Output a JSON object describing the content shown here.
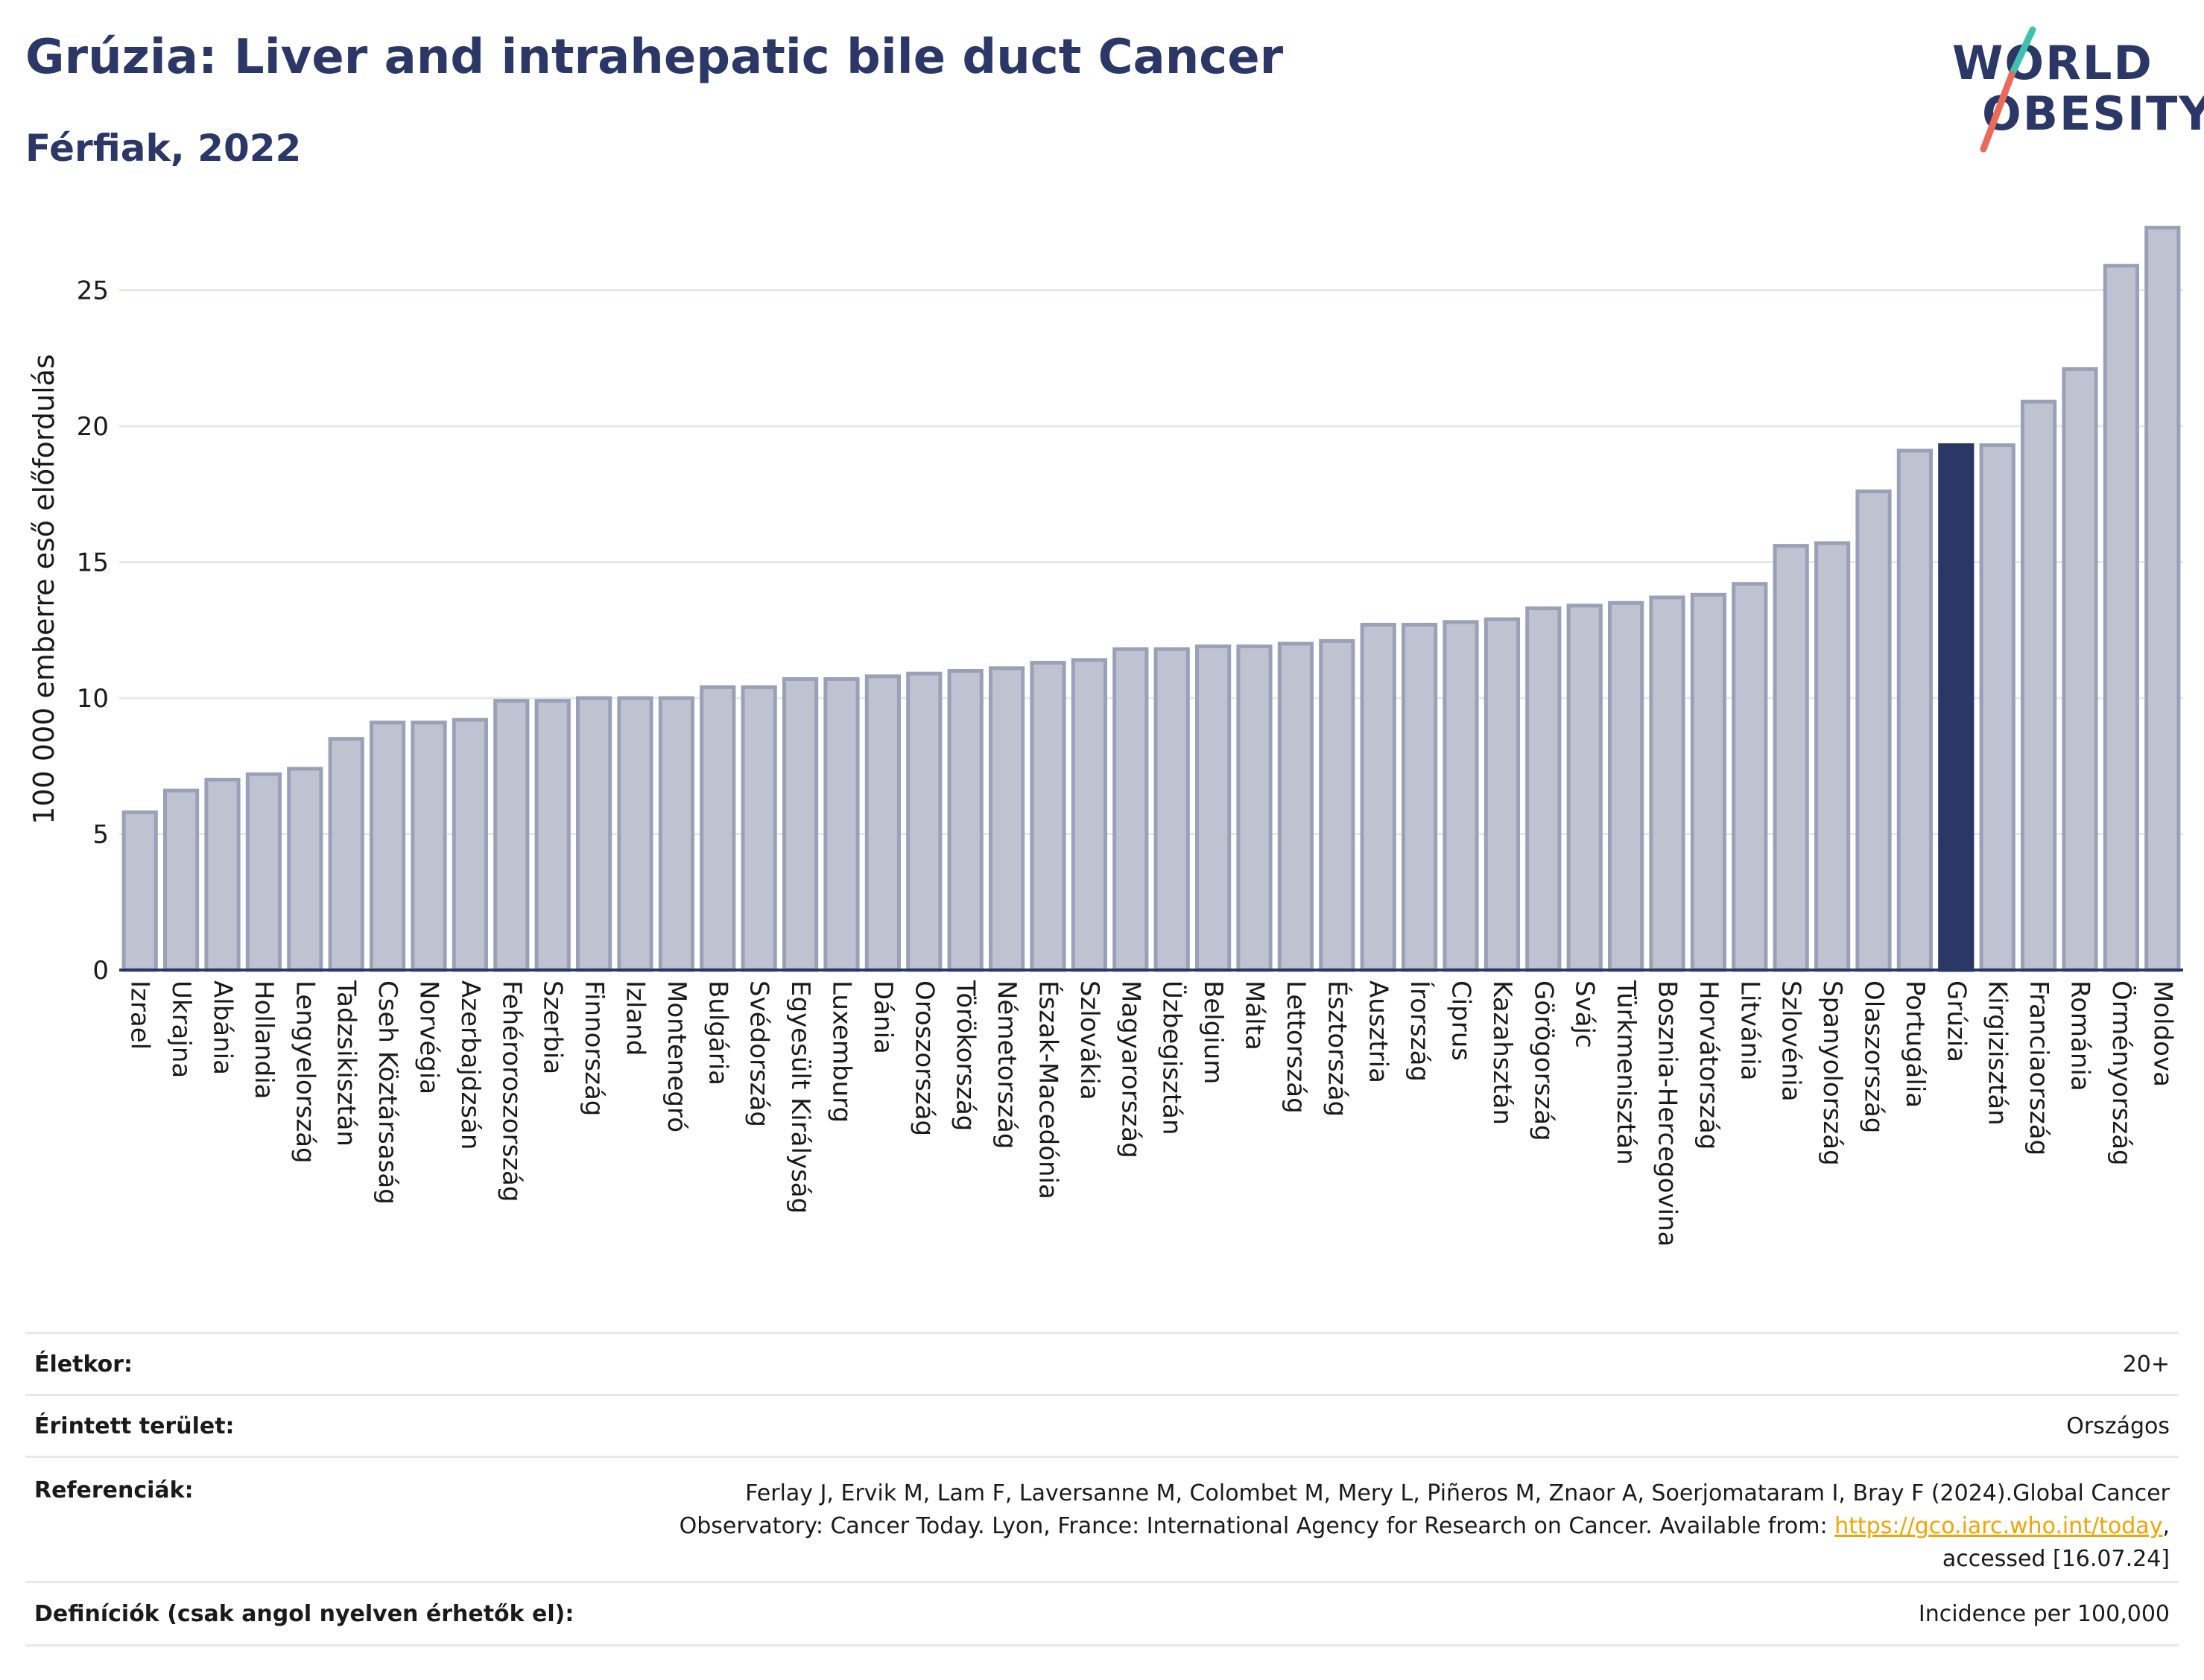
{
  "header": {
    "title": "Grúzia: Liver and intrahepatic bile duct Cancer",
    "subtitle": "Férfiak, 2022"
  },
  "logo": {
    "line1": "WORLD",
    "line2": "OBESITY"
  },
  "colors": {
    "bar_default": "#bfc3d1",
    "bar_default_stroke": "#9aa0b8",
    "bar_highlight": "#2b3766",
    "grid": "#e6e8ef",
    "axis": "#2b3766",
    "logo_slash_top": "#3fc1b0",
    "logo_slash_bottom": "#ea6b5a"
  },
  "chart_data": {
    "type": "bar",
    "ylabel": "100 000 emberre eső előfordulás",
    "ylim": [
      0,
      28
    ],
    "yticks": [
      0,
      5,
      10,
      15,
      20,
      25
    ],
    "grid": true,
    "highlight": "Grúzia",
    "categories": [
      "Izrael",
      "Ukrajna",
      "Albánia",
      "Hollandia",
      "Lengyelország",
      "Tadzsikisztán",
      "Cseh Köztársaság",
      "Norvégia",
      "Azerbajdzsán",
      "Fehéroroszország",
      "Szerbia",
      "Finnország",
      "Izland",
      "Montenegró",
      "Bulgária",
      "Svédország",
      "Egyesült Királyság",
      "Luxemburg",
      "Dánia",
      "Oroszország",
      "Törökország",
      "Németország",
      "Észak-Macedónia",
      "Szlovákia",
      "Magyarország",
      "Üzbegisztán",
      "Belgium",
      "Málta",
      "Lettország",
      "Észtország",
      "Ausztria",
      "Írország",
      "Ciprus",
      "Kazahsztán",
      "Görögország",
      "Svájc",
      "Türkmenisztán",
      "Bosznia-Hercegovina",
      "Horvátország",
      "Litvánia",
      "Szlovénia",
      "Spanyolország",
      "Olaszország",
      "Portugália",
      "Grúzia",
      "Kirgizisztán",
      "Franciaország",
      "Románia",
      "Örményország",
      "Moldova"
    ],
    "values": [
      5.8,
      6.6,
      7.0,
      7.2,
      7.4,
      8.5,
      9.1,
      9.1,
      9.2,
      9.9,
      9.9,
      10.0,
      10.0,
      10.0,
      10.4,
      10.4,
      10.7,
      10.7,
      10.8,
      10.9,
      11.0,
      11.1,
      11.3,
      11.4,
      11.8,
      11.8,
      11.9,
      11.9,
      12.0,
      12.1,
      12.7,
      12.7,
      12.8,
      12.9,
      13.3,
      13.4,
      13.5,
      13.7,
      13.8,
      14.2,
      15.6,
      15.7,
      17.6,
      19.1,
      19.3,
      19.3,
      20.9,
      22.1,
      25.9,
      27.3
    ]
  },
  "footer": {
    "age_label": "Életkor:",
    "age_value": "20+",
    "area_label": "Érintett terület:",
    "area_value": "Országos",
    "ref_label": "Referenciák:",
    "ref_line1": "Ferlay J, Ervik M, Lam F, Laversanne M, Colombet M, Mery L, Piñeros M, Znaor A, Soerjomataram I, Bray F (2024).Global Cancer",
    "ref_line2": "Observatory: Cancer Today. Lyon, France: International Agency for Research on Cancer. Available from: ",
    "ref_link": "https://gco.iarc.who.int/today",
    "ref_line2_end": ",",
    "ref_line3": "accessed [16.07.24]",
    "def_label": "Definíciók (csak angol nyelven érhetők el):",
    "def_value": "Incidence per 100,000"
  }
}
